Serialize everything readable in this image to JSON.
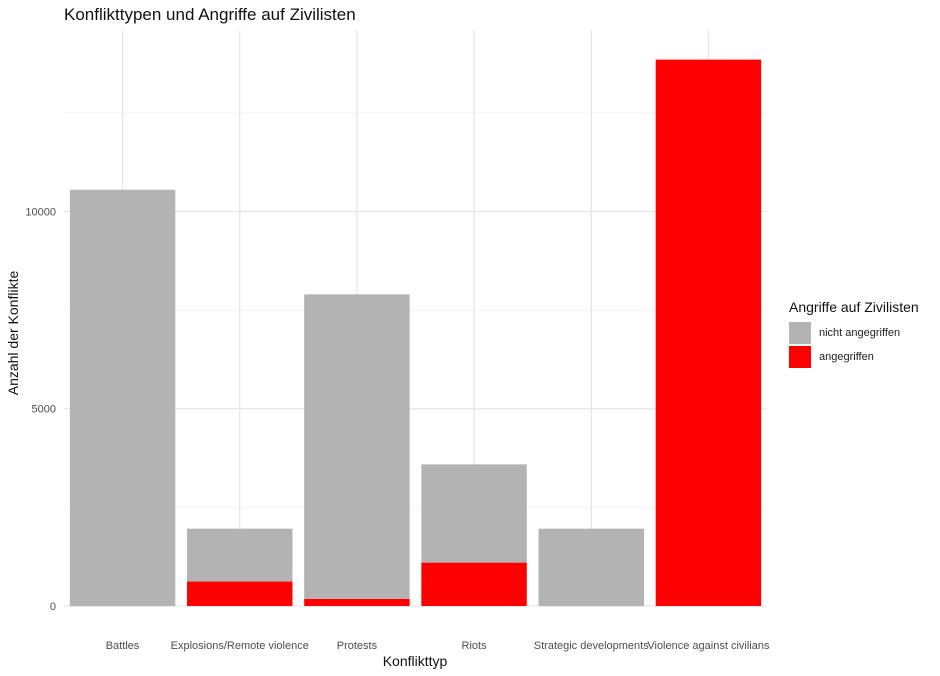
{
  "chart_data": {
    "type": "bar",
    "stacked": true,
    "title": "Konflikttypen und Angriffe auf Zivilisten",
    "xlabel": "Konflikttyp",
    "ylabel": "Anzahl der Konflikte",
    "categories": [
      "Battles",
      "Explosions/Remote violence",
      "Protests",
      "Riots",
      "Strategic developments",
      "Violence against civilians"
    ],
    "series": [
      {
        "name": "angegriffen",
        "color": "#ff0000",
        "values": [
          0,
          620,
          180,
          1100,
          0,
          13850
        ]
      },
      {
        "name": "nicht angegriffen",
        "color": "#b3b3b3",
        "values": [
          10550,
          1340,
          7720,
          2490,
          1960,
          0
        ]
      }
    ],
    "ylim": [
      0,
      14600
    ],
    "yticks": [
      0,
      5000,
      10000
    ],
    "grid": true,
    "legend": {
      "title": "Angriffe auf Zivilisten",
      "placement": "right",
      "order": [
        "nicht angegriffen",
        "angegriffen"
      ]
    }
  }
}
